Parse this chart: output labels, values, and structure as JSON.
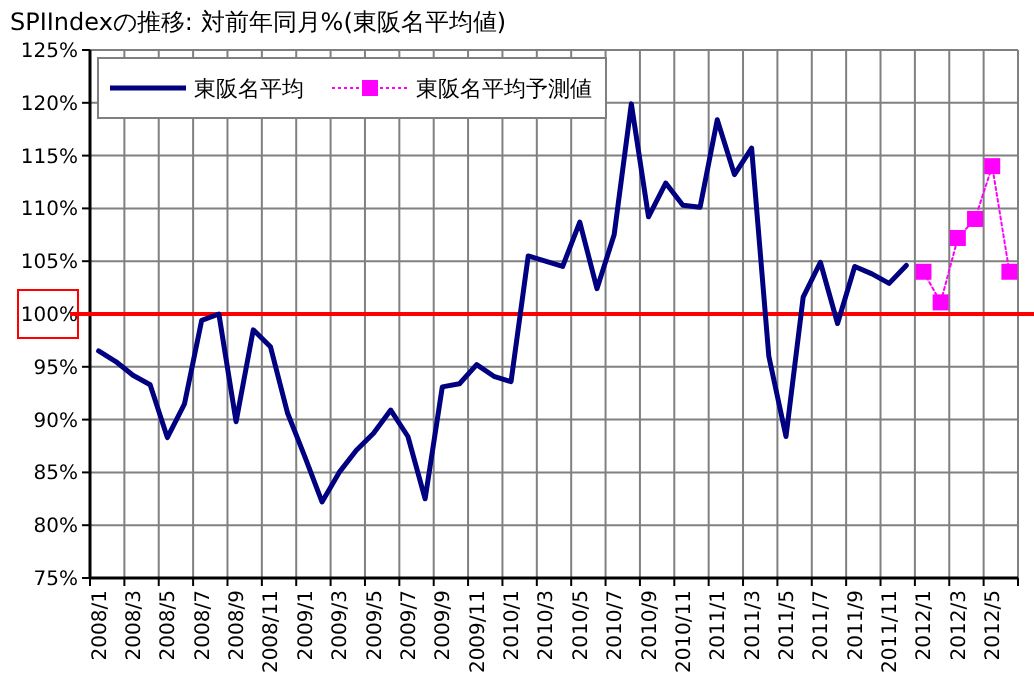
{
  "chart_data": {
    "type": "line",
    "title": "SPIIndexの推移: 対前年同月%(東阪名平均値)",
    "categories": [
      "2008/1",
      null,
      "2008/3",
      null,
      "2008/5",
      null,
      "2008/7",
      null,
      "2008/9",
      null,
      "2008/11",
      null,
      "2009/1",
      null,
      "2009/3",
      null,
      "2009/5",
      null,
      "2009/7",
      null,
      "2009/9",
      null,
      "2009/11",
      null,
      "2010/1",
      null,
      "2010/3",
      null,
      "2010/5",
      null,
      "2010/7",
      null,
      "2010/9",
      null,
      "2010/11",
      null,
      "2011/1",
      null,
      "2011/3",
      null,
      "2011/5",
      null,
      "2011/7",
      null,
      "2011/9",
      null,
      "2011/11",
      null,
      "2012/1",
      null,
      "2012/3",
      null,
      "2012/5",
      null
    ],
    "series": [
      {
        "name": "東阪名平均",
        "color": "#000080",
        "marker": "none",
        "line_style": "solid",
        "values": [
          96.5,
          95.5,
          94.2,
          93.3,
          88.3,
          91.5,
          99.4,
          100.0,
          89.8,
          98.5,
          96.9,
          90.6,
          86.5,
          82.2,
          85.0,
          87.1,
          88.7,
          90.9,
          88.4,
          82.5,
          93.1,
          93.4,
          95.2,
          94.1,
          93.6,
          105.5,
          105.0,
          104.5,
          108.7,
          102.4,
          107.5,
          119.9,
          109.2,
          112.4,
          110.3,
          110.1,
          118.4,
          113.2,
          115.7,
          96.0,
          88.4,
          101.6,
          104.9,
          99.1,
          104.5,
          103.8,
          102.9,
          104.6,
          null,
          null,
          null,
          null,
          null,
          null
        ]
      },
      {
        "name": "東阪名平均予測値",
        "color": "#ff00ff",
        "marker": "square",
        "line_style": "dotted",
        "values": [
          null,
          null,
          null,
          null,
          null,
          null,
          null,
          null,
          null,
          null,
          null,
          null,
          null,
          null,
          null,
          null,
          null,
          null,
          null,
          null,
          null,
          null,
          null,
          null,
          null,
          null,
          null,
          null,
          null,
          null,
          null,
          null,
          null,
          null,
          null,
          null,
          null,
          null,
          null,
          null,
          null,
          null,
          null,
          null,
          null,
          null,
          null,
          null,
          104.0,
          101.1,
          107.2,
          109.0,
          114.0,
          104.0
        ]
      }
    ],
    "ylim": [
      75,
      125
    ],
    "yticks": [
      {
        "value": 75,
        "label": "75%"
      },
      {
        "value": 80,
        "label": "80%"
      },
      {
        "value": 85,
        "label": "85%"
      },
      {
        "value": 90,
        "label": "90%"
      },
      {
        "value": 95,
        "label": "95%"
      },
      {
        "value": 100,
        "label": "100%"
      },
      {
        "value": 105,
        "label": "105%"
      },
      {
        "value": 110,
        "label": "110%"
      },
      {
        "value": 115,
        "label": "115%"
      },
      {
        "value": 120,
        "label": "120%"
      },
      {
        "value": 125,
        "label": "125%"
      }
    ],
    "ref_lines": [
      {
        "axis": "y",
        "value": 100,
        "color": "#ff0000"
      }
    ],
    "grid": true,
    "legend": "top left"
  }
}
